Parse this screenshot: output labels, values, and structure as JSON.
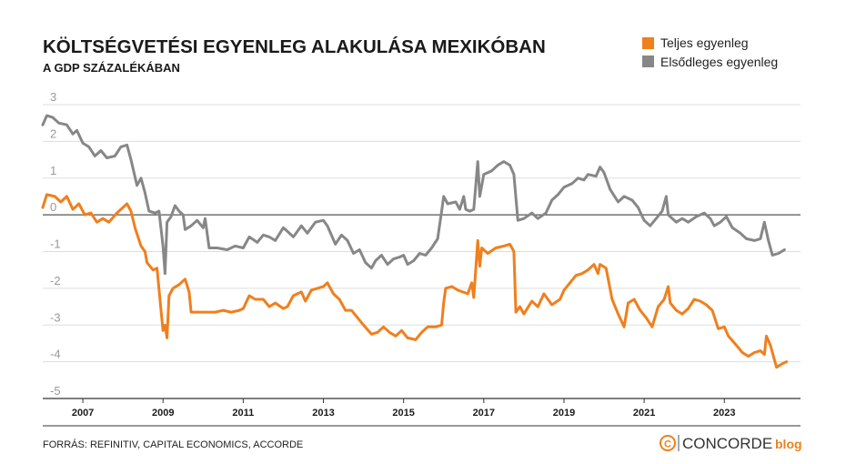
{
  "header": {
    "title": "KÖLTSÉGVETÉSI EGYENLEG ALAKULÁSA MEXIKÓBAN",
    "subtitle": "A GDP SZÁZALÉKÁBAN"
  },
  "footer": {
    "source": "FORRÁS: REFINITIV, CAPITAL ECONOMICS, ACCORDE",
    "logo_text": "CONCORDE",
    "logo_suffix": "blog",
    "logo_symbol": "C"
  },
  "colors": {
    "orange": "#f07f1d",
    "gray": "#878787",
    "grid": "#dddddd",
    "axis": "#333333",
    "zero": "#555555"
  },
  "chart_data": {
    "type": "line",
    "title": "KÖLTSÉGVETÉSI EGYENLEG ALAKULÁSA MEXIKÓBAN",
    "subtitle": "A GDP SZÁZALÉKÁBAN",
    "xlabel": "",
    "ylabel": "",
    "ylim": [
      -5,
      3
    ],
    "xlim": [
      2006,
      2024.9
    ],
    "y_ticks": [
      3,
      2,
      1,
      0,
      -1,
      -2,
      -3,
      -4,
      -5
    ],
    "x_ticks": [
      2007,
      2009,
      2011,
      2013,
      2015,
      2017,
      2019,
      2021,
      2023
    ],
    "grid": true,
    "legend_position": "top-right",
    "series": [
      {
        "name": "Teljes egyenleg",
        "color": "#f07f1d",
        "points": [
          [
            2006.0,
            0.2
          ],
          [
            2006.1,
            0.55
          ],
          [
            2006.3,
            0.5
          ],
          [
            2006.45,
            0.35
          ],
          [
            2006.6,
            0.5
          ],
          [
            2006.75,
            0.15
          ],
          [
            2006.9,
            0.3
          ],
          [
            2007.05,
            0.0
          ],
          [
            2007.2,
            0.05
          ],
          [
            2007.35,
            -0.2
          ],
          [
            2007.5,
            -0.1
          ],
          [
            2007.65,
            -0.2
          ],
          [
            2007.85,
            0.05
          ],
          [
            2008.0,
            0.2
          ],
          [
            2008.1,
            0.3
          ],
          [
            2008.2,
            0.1
          ],
          [
            2008.3,
            -0.35
          ],
          [
            2008.45,
            -0.85
          ],
          [
            2008.55,
            -1.0
          ],
          [
            2008.6,
            -1.3
          ],
          [
            2008.75,
            -1.5
          ],
          [
            2008.85,
            -1.45
          ],
          [
            2008.95,
            -2.6
          ],
          [
            2009.0,
            -3.15
          ],
          [
            2009.05,
            -3.0
          ],
          [
            2009.1,
            -3.35
          ],
          [
            2009.15,
            -2.2
          ],
          [
            2009.25,
            -2.0
          ],
          [
            2009.4,
            -1.9
          ],
          [
            2009.55,
            -1.75
          ],
          [
            2009.65,
            -2.1
          ],
          [
            2009.7,
            -2.65
          ],
          [
            2010.0,
            -2.65
          ],
          [
            2010.3,
            -2.65
          ],
          [
            2010.5,
            -2.6
          ],
          [
            2010.7,
            -2.65
          ],
          [
            2010.9,
            -2.6
          ],
          [
            2011.0,
            -2.55
          ],
          [
            2011.15,
            -2.2
          ],
          [
            2011.3,
            -2.3
          ],
          [
            2011.5,
            -2.3
          ],
          [
            2011.65,
            -2.5
          ],
          [
            2011.8,
            -2.4
          ],
          [
            2012.0,
            -2.55
          ],
          [
            2012.1,
            -2.5
          ],
          [
            2012.25,
            -2.2
          ],
          [
            2012.45,
            -2.1
          ],
          [
            2012.55,
            -2.35
          ],
          [
            2012.7,
            -2.05
          ],
          [
            2012.85,
            -2.0
          ],
          [
            2013.0,
            -1.95
          ],
          [
            2013.1,
            -1.85
          ],
          [
            2013.25,
            -2.15
          ],
          [
            2013.4,
            -2.3
          ],
          [
            2013.55,
            -2.6
          ],
          [
            2013.7,
            -2.6
          ],
          [
            2013.85,
            -2.8
          ],
          [
            2014.0,
            -3.0
          ],
          [
            2014.2,
            -3.25
          ],
          [
            2014.35,
            -3.2
          ],
          [
            2014.5,
            -3.05
          ],
          [
            2014.65,
            -3.2
          ],
          [
            2014.8,
            -3.3
          ],
          [
            2014.95,
            -3.15
          ],
          [
            2015.1,
            -3.35
          ],
          [
            2015.3,
            -3.4
          ],
          [
            2015.45,
            -3.2
          ],
          [
            2015.6,
            -3.05
          ],
          [
            2015.8,
            -3.05
          ],
          [
            2015.95,
            -3.0
          ],
          [
            2016.0,
            -2.4
          ],
          [
            2016.05,
            -2.0
          ],
          [
            2016.2,
            -1.95
          ],
          [
            2016.35,
            -2.05
          ],
          [
            2016.6,
            -2.15
          ],
          [
            2016.7,
            -1.85
          ],
          [
            2016.75,
            -2.25
          ],
          [
            2016.85,
            -0.7
          ],
          [
            2016.9,
            -1.4
          ],
          [
            2016.95,
            -0.9
          ],
          [
            2017.1,
            -1.05
          ],
          [
            2017.3,
            -0.9
          ],
          [
            2017.5,
            -0.85
          ],
          [
            2017.65,
            -0.8
          ],
          [
            2017.75,
            -1.0
          ],
          [
            2017.8,
            -2.65
          ],
          [
            2017.9,
            -2.5
          ],
          [
            2018.0,
            -2.7
          ],
          [
            2018.2,
            -2.35
          ],
          [
            2018.35,
            -2.5
          ],
          [
            2018.5,
            -2.15
          ],
          [
            2018.7,
            -2.45
          ],
          [
            2018.9,
            -2.3
          ],
          [
            2019.0,
            -2.05
          ],
          [
            2019.15,
            -1.85
          ],
          [
            2019.3,
            -1.65
          ],
          [
            2019.45,
            -1.6
          ],
          [
            2019.6,
            -1.5
          ],
          [
            2019.75,
            -1.35
          ],
          [
            2019.85,
            -1.6
          ],
          [
            2019.9,
            -1.35
          ],
          [
            2020.05,
            -1.45
          ],
          [
            2020.2,
            -2.3
          ],
          [
            2020.35,
            -2.7
          ],
          [
            2020.5,
            -3.05
          ],
          [
            2020.6,
            -2.4
          ],
          [
            2020.75,
            -2.3
          ],
          [
            2020.9,
            -2.6
          ],
          [
            2021.05,
            -2.8
          ],
          [
            2021.2,
            -3.05
          ],
          [
            2021.35,
            -2.5
          ],
          [
            2021.5,
            -2.3
          ],
          [
            2021.6,
            -1.95
          ],
          [
            2021.65,
            -2.4
          ],
          [
            2021.8,
            -2.6
          ],
          [
            2021.95,
            -2.7
          ],
          [
            2022.1,
            -2.55
          ],
          [
            2022.25,
            -2.3
          ],
          [
            2022.4,
            -2.35
          ],
          [
            2022.55,
            -2.45
          ],
          [
            2022.7,
            -2.6
          ],
          [
            2022.85,
            -3.1
          ],
          [
            2023.0,
            -3.05
          ],
          [
            2023.1,
            -3.3
          ],
          [
            2023.3,
            -3.55
          ],
          [
            2023.45,
            -3.75
          ],
          [
            2023.6,
            -3.85
          ],
          [
            2023.75,
            -3.75
          ],
          [
            2023.9,
            -3.7
          ],
          [
            2024.0,
            -3.8
          ],
          [
            2024.05,
            -3.3
          ],
          [
            2024.15,
            -3.55
          ],
          [
            2024.3,
            -4.15
          ],
          [
            2024.45,
            -4.05
          ],
          [
            2024.55,
            -4.0
          ]
        ]
      },
      {
        "name": "Elsődleges egyenleg",
        "color": "#878787",
        "points": [
          [
            2006.0,
            2.45
          ],
          [
            2006.1,
            2.7
          ],
          [
            2006.25,
            2.65
          ],
          [
            2006.4,
            2.5
          ],
          [
            2006.6,
            2.45
          ],
          [
            2006.75,
            2.2
          ],
          [
            2006.85,
            2.3
          ],
          [
            2007.0,
            1.95
          ],
          [
            2007.15,
            1.85
          ],
          [
            2007.3,
            1.6
          ],
          [
            2007.45,
            1.75
          ],
          [
            2007.6,
            1.55
          ],
          [
            2007.8,
            1.6
          ],
          [
            2007.95,
            1.85
          ],
          [
            2008.1,
            1.9
          ],
          [
            2008.2,
            1.5
          ],
          [
            2008.35,
            0.8
          ],
          [
            2008.45,
            1.0
          ],
          [
            2008.55,
            0.6
          ],
          [
            2008.65,
            0.1
          ],
          [
            2008.8,
            0.05
          ],
          [
            2008.9,
            0.1
          ],
          [
            2009.0,
            -0.85
          ],
          [
            2009.05,
            -1.6
          ],
          [
            2009.1,
            -0.2
          ],
          [
            2009.2,
            -0.05
          ],
          [
            2009.3,
            0.25
          ],
          [
            2009.4,
            0.1
          ],
          [
            2009.5,
            0.0
          ],
          [
            2009.55,
            -0.4
          ],
          [
            2009.7,
            -0.3
          ],
          [
            2009.85,
            -0.15
          ],
          [
            2010.0,
            -0.35
          ],
          [
            2010.05,
            -0.1
          ],
          [
            2010.15,
            -0.9
          ],
          [
            2010.35,
            -0.9
          ],
          [
            2010.6,
            -0.95
          ],
          [
            2010.8,
            -0.85
          ],
          [
            2011.0,
            -0.9
          ],
          [
            2011.15,
            -0.6
          ],
          [
            2011.35,
            -0.75
          ],
          [
            2011.5,
            -0.55
          ],
          [
            2011.65,
            -0.6
          ],
          [
            2011.8,
            -0.7
          ],
          [
            2012.0,
            -0.35
          ],
          [
            2012.1,
            -0.45
          ],
          [
            2012.25,
            -0.6
          ],
          [
            2012.45,
            -0.3
          ],
          [
            2012.6,
            -0.5
          ],
          [
            2012.8,
            -0.2
          ],
          [
            2013.0,
            -0.15
          ],
          [
            2013.1,
            -0.3
          ],
          [
            2013.3,
            -0.8
          ],
          [
            2013.45,
            -0.55
          ],
          [
            2013.6,
            -0.7
          ],
          [
            2013.75,
            -1.05
          ],
          [
            2013.9,
            -0.95
          ],
          [
            2014.05,
            -1.3
          ],
          [
            2014.2,
            -1.45
          ],
          [
            2014.3,
            -1.25
          ],
          [
            2014.45,
            -1.1
          ],
          [
            2014.6,
            -1.35
          ],
          [
            2014.75,
            -1.2
          ],
          [
            2014.9,
            -1.15
          ],
          [
            2015.0,
            -1.1
          ],
          [
            2015.1,
            -1.35
          ],
          [
            2015.25,
            -1.25
          ],
          [
            2015.4,
            -1.05
          ],
          [
            2015.55,
            -1.1
          ],
          [
            2015.7,
            -0.9
          ],
          [
            2015.85,
            -0.65
          ],
          [
            2015.95,
            0.1
          ],
          [
            2016.0,
            0.5
          ],
          [
            2016.1,
            0.3
          ],
          [
            2016.3,
            0.35
          ],
          [
            2016.4,
            0.15
          ],
          [
            2016.5,
            0.5
          ],
          [
            2016.55,
            0.15
          ],
          [
            2016.65,
            0.1
          ],
          [
            2016.75,
            0.15
          ],
          [
            2016.85,
            1.45
          ],
          [
            2016.9,
            0.5
          ],
          [
            2017.0,
            1.1
          ],
          [
            2017.2,
            1.2
          ],
          [
            2017.35,
            1.35
          ],
          [
            2017.5,
            1.45
          ],
          [
            2017.65,
            1.35
          ],
          [
            2017.75,
            1.1
          ],
          [
            2017.85,
            -0.15
          ],
          [
            2018.0,
            -0.1
          ],
          [
            2018.2,
            0.05
          ],
          [
            2018.35,
            -0.1
          ],
          [
            2018.55,
            0.05
          ],
          [
            2018.7,
            0.4
          ],
          [
            2018.85,
            0.55
          ],
          [
            2019.0,
            0.75
          ],
          [
            2019.2,
            0.85
          ],
          [
            2019.35,
            1.0
          ],
          [
            2019.5,
            0.95
          ],
          [
            2019.6,
            1.1
          ],
          [
            2019.8,
            1.05
          ],
          [
            2019.9,
            1.3
          ],
          [
            2020.0,
            1.15
          ],
          [
            2020.15,
            0.7
          ],
          [
            2020.35,
            0.35
          ],
          [
            2020.5,
            0.5
          ],
          [
            2020.7,
            0.4
          ],
          [
            2020.85,
            0.2
          ],
          [
            2021.0,
            -0.15
          ],
          [
            2021.15,
            -0.3
          ],
          [
            2021.3,
            -0.1
          ],
          [
            2021.45,
            0.1
          ],
          [
            2021.55,
            0.5
          ],
          [
            2021.6,
            0.0
          ],
          [
            2021.8,
            -0.2
          ],
          [
            2021.95,
            -0.1
          ],
          [
            2022.1,
            -0.2
          ],
          [
            2022.3,
            -0.05
          ],
          [
            2022.5,
            0.05
          ],
          [
            2022.65,
            -0.1
          ],
          [
            2022.75,
            -0.3
          ],
          [
            2022.9,
            -0.2
          ],
          [
            2023.05,
            -0.05
          ],
          [
            2023.2,
            -0.35
          ],
          [
            2023.4,
            -0.5
          ],
          [
            2023.55,
            -0.65
          ],
          [
            2023.75,
            -0.7
          ],
          [
            2023.9,
            -0.65
          ],
          [
            2024.0,
            -0.2
          ],
          [
            2024.1,
            -0.7
          ],
          [
            2024.2,
            -1.1
          ],
          [
            2024.35,
            -1.05
          ],
          [
            2024.5,
            -0.95
          ]
        ]
      }
    ]
  }
}
